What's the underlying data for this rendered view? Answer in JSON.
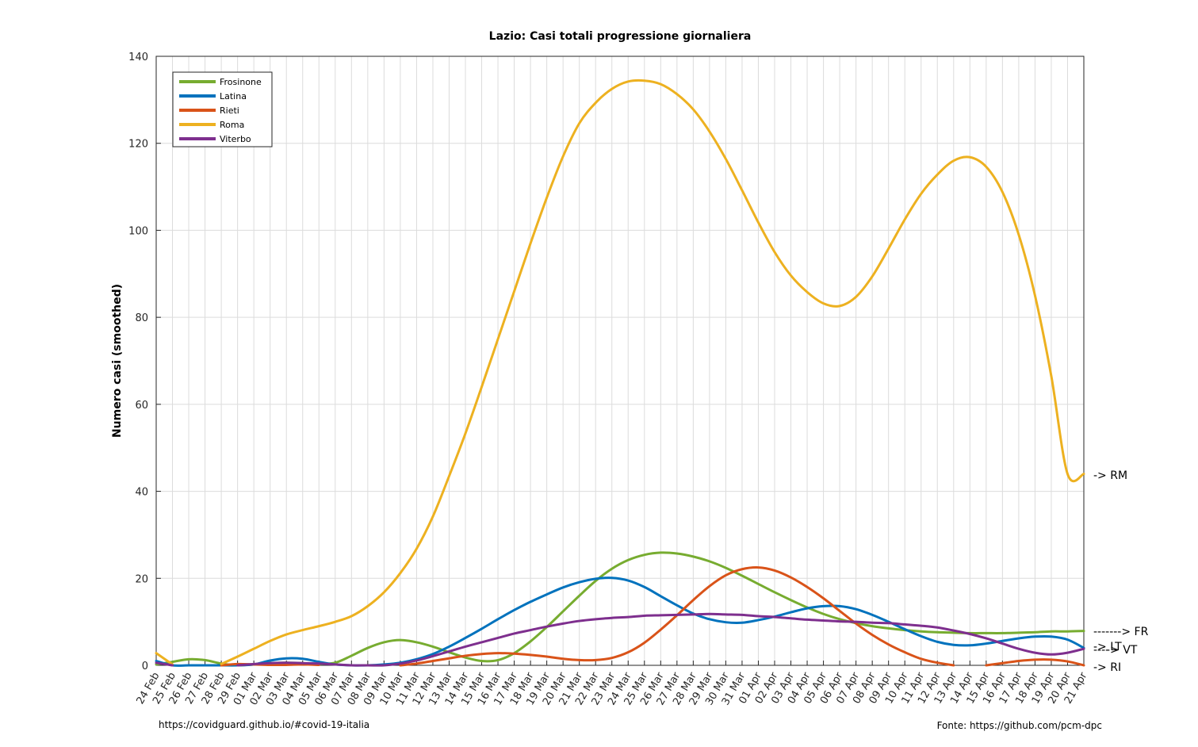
{
  "chart_data": {
    "type": "line",
    "title": "Lazio: Casi totali progressione giornaliera",
    "xlabel": "",
    "ylabel": "Numero casi (smoothed)",
    "ylim": [
      0,
      140
    ],
    "yticks": [
      0,
      20,
      40,
      60,
      80,
      100,
      120,
      140
    ],
    "grid": true,
    "legend_position": "top-left",
    "categories": [
      "24 Feb",
      "25 Feb",
      "26 Feb",
      "27 Feb",
      "28 Feb",
      "29 Feb",
      "01 Mar",
      "02 Mar",
      "03 Mar",
      "04 Mar",
      "05 Mar",
      "06 Mar",
      "07 Mar",
      "08 Mar",
      "09 Mar",
      "10 Mar",
      "11 Mar",
      "12 Mar",
      "13 Mar",
      "14 Mar",
      "15 Mar",
      "16 Mar",
      "17 Mar",
      "18 Mar",
      "19 Mar",
      "20 Mar",
      "21 Mar",
      "22 Mar",
      "23 Mar",
      "24 Mar",
      "25 Mar",
      "26 Mar",
      "27 Mar",
      "28 Mar",
      "29 Mar",
      "30 Mar",
      "31 Mar",
      "01 Apr",
      "02 Apr",
      "03 Apr",
      "04 Apr",
      "05 Apr",
      "06 Apr",
      "07 Apr",
      "08 Apr",
      "09 Apr",
      "10 Apr",
      "11 Apr",
      "12 Apr",
      "13 Apr",
      "14 Apr",
      "15 Apr",
      "16 Apr",
      "17 Apr",
      "18 Apr",
      "19 Apr",
      "20 Apr",
      "21 Apr"
    ],
    "series": [
      {
        "name": "Frosinone",
        "color": "#77ac30",
        "values": [
          0.2,
          0.8,
          1.4,
          1.2,
          0.4,
          0.0,
          0.2,
          0.5,
          0.6,
          0.5,
          0.3,
          0.6,
          2.2,
          4.0,
          5.3,
          5.8,
          5.3,
          4.3,
          3.0,
          1.8,
          1.0,
          1.2,
          2.8,
          5.5,
          8.8,
          12.4,
          16.0,
          19.4,
          22.2,
          24.2,
          25.4,
          25.9,
          25.7,
          25.0,
          23.9,
          22.4,
          20.6,
          18.7,
          16.8,
          15.0,
          13.3,
          11.8,
          10.6,
          9.7,
          9.0,
          8.5,
          8.1,
          7.8,
          7.6,
          7.5,
          7.4,
          7.4,
          7.4,
          7.5,
          7.6,
          7.8,
          7.8,
          7.9
        ]
      },
      {
        "name": "Latina",
        "color": "#0072bd",
        "values": [
          1.0,
          0.0,
          0.0,
          0.0,
          0.0,
          0.0,
          0.2,
          1.1,
          1.6,
          1.5,
          0.8,
          0.2,
          0.0,
          0.0,
          0.2,
          0.6,
          1.4,
          2.6,
          4.3,
          6.3,
          8.4,
          10.6,
          12.7,
          14.6,
          16.3,
          17.9,
          19.1,
          19.9,
          20.1,
          19.5,
          18.0,
          15.9,
          13.8,
          11.9,
          10.6,
          9.9,
          9.8,
          10.4,
          11.2,
          12.2,
          13.1,
          13.6,
          13.6,
          12.9,
          11.6,
          10.0,
          8.3,
          6.7,
          5.4,
          4.7,
          4.6,
          5.0,
          5.6,
          6.2,
          6.6,
          6.6,
          5.9,
          4.0
        ]
      },
      {
        "name": "Rieti",
        "color": "#d95319",
        "values": [
          null,
          null,
          null,
          null,
          0.0,
          0.3,
          0.2,
          0.1,
          0.1,
          0.2,
          0.1,
          null,
          null,
          null,
          null,
          0.0,
          0.4,
          1.0,
          1.6,
          2.2,
          2.6,
          2.8,
          2.7,
          2.4,
          2.0,
          1.5,
          1.2,
          1.2,
          1.7,
          3.0,
          5.2,
          8.2,
          11.5,
          15.0,
          18.2,
          20.7,
          22.1,
          22.5,
          21.8,
          20.2,
          18.0,
          15.4,
          12.5,
          9.6,
          7.0,
          4.8,
          3.0,
          1.5,
          0.6,
          0.0,
          null,
          0.0,
          0.5,
          1.0,
          1.3,
          1.3,
          0.9,
          0.0
        ]
      },
      {
        "name": "Roma",
        "color": "#edb120",
        "values": [
          2.8,
          0.2,
          null,
          null,
          0.3,
          2.0,
          3.8,
          5.6,
          7.1,
          8.1,
          9.0,
          10.0,
          11.3,
          13.6,
          16.8,
          21.2,
          26.8,
          34.2,
          43.5,
          53.3,
          64.0,
          75.0,
          86.0,
          97.0,
          107.5,
          117.0,
          124.6,
          129.3,
          132.5,
          134.2,
          134.4,
          133.6,
          131.3,
          127.8,
          122.7,
          116.4,
          109.2,
          101.8,
          95.0,
          89.6,
          85.8,
          83.2,
          82.6,
          84.7,
          89.4,
          95.8,
          102.5,
          108.4,
          112.8,
          116.0,
          116.8,
          114.6,
          108.8,
          99.0,
          85.0,
          66.5,
          44.0,
          44.0
        ]
      },
      {
        "name": "Viterbo",
        "color": "#7e2f8e",
        "values": [
          0.6,
          0.0,
          null,
          null,
          null,
          0.0,
          0.3,
          0.5,
          0.6,
          0.5,
          0.4,
          0.2,
          0.0,
          0.0,
          0.0,
          0.4,
          1.1,
          2.1,
          3.2,
          4.3,
          5.3,
          6.3,
          7.3,
          8.1,
          8.9,
          9.6,
          10.2,
          10.6,
          10.9,
          11.1,
          11.4,
          11.5,
          11.6,
          11.7,
          11.8,
          11.7,
          11.6,
          11.3,
          11.1,
          10.8,
          10.5,
          10.3,
          10.1,
          10.0,
          9.8,
          9.7,
          9.4,
          9.1,
          8.7,
          8.0,
          7.2,
          6.2,
          5.0,
          3.8,
          2.9,
          2.5,
          2.9,
          3.8
        ]
      }
    ]
  },
  "end_labels": {
    "rm": "-> RM",
    "fr": "-------> FR",
    "lt": "-> LT",
    "vt": "-> VT",
    "vt_prefix": "----",
    "ri": "-> RI"
  },
  "footer": {
    "left": "https://covidguard.github.io/#covid-19-italia",
    "right": "Fonte: https://github.com/pcm-dpc"
  }
}
